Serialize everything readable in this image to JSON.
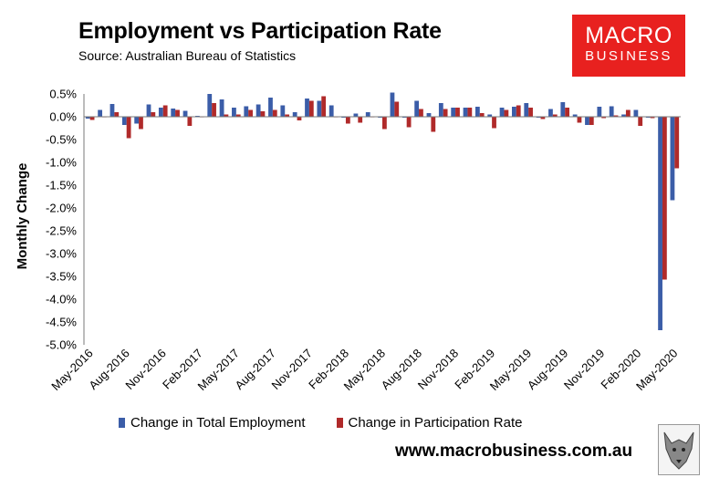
{
  "title": "Employment vs Participation Rate",
  "source": "Source: Australian Bureau of Statistics",
  "logo": {
    "line1": "MACRO",
    "line2": "BUSINESS"
  },
  "website": "www.macrobusiness.com.au",
  "colors": {
    "employment": "#3b5da8",
    "participation": "#b02a2a",
    "logo_bg": "#e8211f"
  },
  "chart_data": {
    "type": "bar",
    "ylabel": "Monthly Change",
    "xlabel": "",
    "ylim": [
      -5.0,
      0.5
    ],
    "ytick_labels": [
      "0.5%",
      "0.0%",
      "-0.5%",
      "-1.0%",
      "-1.5%",
      "-2.0%",
      "-2.5%",
      "-3.0%",
      "-3.5%",
      "-4.0%",
      "-4.5%",
      "-5.0%"
    ],
    "xtick_labels": [
      "May-2016",
      "Aug-2016",
      "Nov-2016",
      "Feb-2017",
      "May-2017",
      "Aug-2017",
      "Nov-2017",
      "Feb-2018",
      "May-2018",
      "Aug-2018",
      "Nov-2018",
      "Feb-2019",
      "May-2019",
      "Aug-2019",
      "Nov-2019",
      "Feb-2020",
      "May-2020"
    ],
    "grid": false,
    "legend": "bottom",
    "categories": [
      "May-2016",
      "Jun-2016",
      "Jul-2016",
      "Aug-2016",
      "Sep-2016",
      "Oct-2016",
      "Nov-2016",
      "Dec-2016",
      "Jan-2017",
      "Feb-2017",
      "Mar-2017",
      "Apr-2017",
      "May-2017",
      "Jun-2017",
      "Jul-2017",
      "Aug-2017",
      "Sep-2017",
      "Oct-2017",
      "Nov-2017",
      "Dec-2017",
      "Jan-2018",
      "Feb-2018",
      "Mar-2018",
      "Apr-2018",
      "May-2018",
      "Jun-2018",
      "Jul-2018",
      "Aug-2018",
      "Sep-2018",
      "Oct-2018",
      "Nov-2018",
      "Dec-2018",
      "Jan-2019",
      "Feb-2019",
      "Mar-2019",
      "Apr-2019",
      "May-2019",
      "Jun-2019",
      "Jul-2019",
      "Aug-2019",
      "Sep-2019",
      "Oct-2019",
      "Nov-2019",
      "Dec-2019",
      "Jan-2020",
      "Feb-2020",
      "Mar-2020",
      "Apr-2020",
      "May-2020"
    ],
    "series": [
      {
        "name": "Change in Total Employment",
        "values": [
          -0.04,
          0.15,
          0.28,
          -0.18,
          -0.15,
          0.27,
          0.2,
          0.18,
          0.13,
          0.02,
          0.5,
          0.38,
          0.2,
          0.23,
          0.27,
          0.42,
          0.25,
          0.1,
          0.4,
          0.35,
          0.25,
          -0.02,
          0.07,
          0.1,
          -0.02,
          0.53,
          -0.02,
          0.35,
          0.08,
          0.3,
          0.2,
          0.2,
          0.22,
          0.05,
          0.2,
          0.22,
          0.3,
          -0.02,
          0.17,
          0.32,
          0.05,
          -0.18,
          0.22,
          0.23,
          0.05,
          0.15,
          -0.02,
          -4.68,
          -1.83
        ]
      },
      {
        "name": "Change in Participation Rate",
        "values": [
          -0.07,
          0.0,
          0.1,
          -0.47,
          -0.27,
          0.1,
          0.25,
          0.15,
          -0.2,
          0.0,
          0.3,
          0.05,
          0.05,
          0.15,
          0.12,
          0.15,
          0.05,
          -0.08,
          0.35,
          0.45,
          0.0,
          -0.15,
          -0.13,
          0.0,
          -0.27,
          0.33,
          -0.23,
          0.17,
          -0.33,
          0.17,
          0.2,
          0.2,
          0.08,
          -0.25,
          0.15,
          0.25,
          0.2,
          -0.05,
          0.05,
          0.2,
          -0.13,
          -0.18,
          -0.03,
          0.03,
          0.15,
          -0.2,
          -0.03,
          -3.57,
          -1.13
        ]
      }
    ]
  }
}
